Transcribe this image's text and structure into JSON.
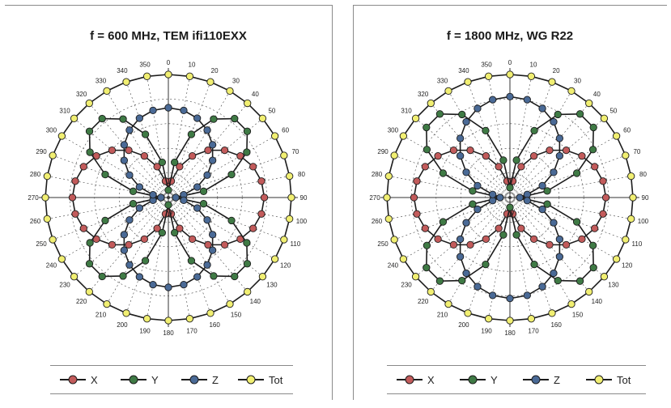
{
  "colors": {
    "X": "#c25b5b",
    "Y": "#3f7a45",
    "Z": "#4a6a96",
    "Tot": "#f1ef72",
    "line": "#1c1c1c",
    "grid": "#444444"
  },
  "charts": [
    {
      "id": "left",
      "title": "f = 600 MHz, TEM  ifi110EXX"
    },
    {
      "id": "right",
      "title": "f = 1800 MHz, WG R22"
    }
  ],
  "legend": [
    "X",
    "Y",
    "Z",
    "Tot"
  ],
  "chart_data": [
    {
      "type": "polar-line",
      "title": "f = 600 MHz, TEM  ifi110EXX",
      "angles_deg": [
        0,
        10,
        20,
        30,
        40,
        50,
        60,
        70,
        80,
        90,
        100,
        110,
        120,
        130,
        140,
        150,
        160,
        170,
        180,
        190,
        200,
        210,
        220,
        230,
        240,
        250,
        260,
        270,
        280,
        290,
        300,
        310,
        320,
        330,
        340,
        350
      ],
      "angle_labels": [
        "0",
        "10",
        "20",
        "30",
        "40",
        "50",
        "60",
        "70",
        "80",
        "90",
        "100",
        "110",
        "120",
        "130",
        "140",
        "150",
        "160",
        "170",
        "180",
        "190",
        "200",
        "210",
        "220",
        "230",
        "240",
        "250",
        "260",
        "270",
        "280",
        "290",
        "300",
        "310",
        "320",
        "330",
        "340",
        "350"
      ],
      "series": [
        {
          "name": "X",
          "pattern": "abs-sin",
          "amplitude": 0.78,
          "floor": 0.12
        },
        {
          "name": "Y",
          "pattern": "abs-sin2",
          "amplitude": 0.85,
          "floor": 0.06
        },
        {
          "name": "Z",
          "pattern": "abs-cos",
          "amplitude": 0.73,
          "floor": 0.06
        },
        {
          "name": "Tot",
          "pattern": "constant",
          "amplitude": 1.0,
          "floor": 1.0
        }
      ]
    },
    {
      "type": "polar-line",
      "title": "f = 1800 MHz, WG R22",
      "angles_deg": [
        0,
        10,
        20,
        30,
        40,
        50,
        60,
        70,
        80,
        90,
        100,
        110,
        120,
        130,
        140,
        150,
        160,
        170,
        180,
        190,
        200,
        210,
        220,
        230,
        240,
        250,
        260,
        270,
        280,
        290,
        300,
        310,
        320,
        330,
        340,
        350
      ],
      "angle_labels": [
        "0",
        "10",
        "20",
        "30",
        "40",
        "50",
        "60",
        "70",
        "80",
        "90",
        "100",
        "110",
        "120",
        "130",
        "140",
        "150",
        "160",
        "170",
        "180",
        "190",
        "200",
        "210",
        "220",
        "230",
        "240",
        "250",
        "260",
        "270",
        "280",
        "290",
        "300",
        "310",
        "320",
        "330",
        "340",
        "350"
      ],
      "series": [
        {
          "name": "X",
          "pattern": "abs-sin",
          "amplitude": 0.78,
          "floor": 0.12
        },
        {
          "name": "Y",
          "pattern": "abs-sin2",
          "amplitude": 0.9,
          "floor": 0.08
        },
        {
          "name": "Z",
          "pattern": "abs-cos",
          "amplitude": 0.82,
          "floor": 0.08
        },
        {
          "name": "Tot",
          "pattern": "constant",
          "amplitude": 1.0,
          "floor": 1.0
        }
      ]
    }
  ]
}
